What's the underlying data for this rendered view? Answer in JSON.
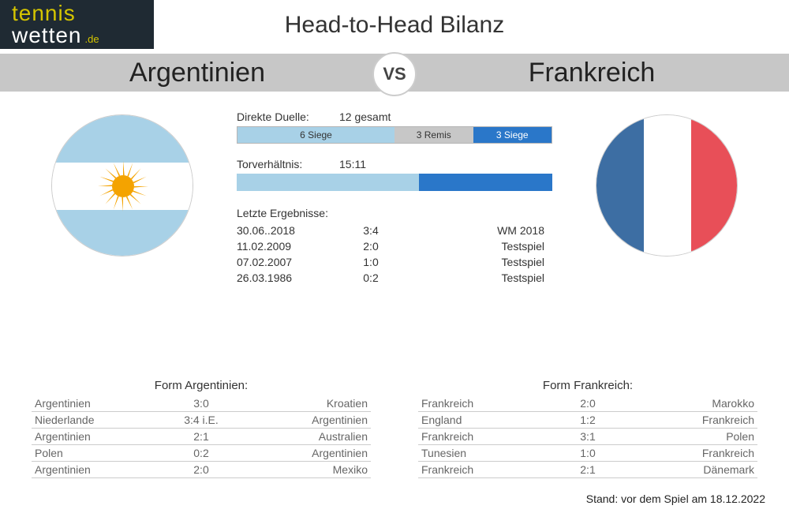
{
  "logo": {
    "line1": "tennis",
    "line2a": "wetten",
    "line2b": ".de"
  },
  "title": "Head-to-Head Bilanz",
  "teamA": "Argentinien",
  "teamB": "Frankreich",
  "vs": "VS",
  "colors": {
    "arg_light": "#a8d1e7",
    "arg_sun": "#f4a300",
    "fra_blue": "#3d6ea3",
    "fra_white": "#ffffff",
    "fra_red": "#e84f58",
    "bar_a": "#a8d1e7",
    "bar_draw": "#c7c7c7",
    "bar_b": "#2a77c9",
    "goals_a": "#a8d1e7",
    "goals_b": "#2a77c9"
  },
  "h2h": {
    "label": "Direkte Duelle:",
    "total_text": "12 gesamt",
    "a_wins": 6,
    "draws": 3,
    "b_wins": 3,
    "total": 12,
    "a_text": "6 Siege",
    "d_text": "3 Remis",
    "b_text": "3 Siege"
  },
  "goals": {
    "label": "Torverhältnis:",
    "text": "15:11",
    "a": 15,
    "b": 11
  },
  "recent": {
    "label": "Letzte Ergebnisse:",
    "rows": [
      {
        "date": "30.06..2018",
        "score": "3:4",
        "comp": "WM 2018"
      },
      {
        "date": "11.02.2009",
        "score": "2:0",
        "comp": "Testspiel"
      },
      {
        "date": "07.02.2007",
        "score": "1:0",
        "comp": "Testspiel"
      },
      {
        "date": "26.03.1986",
        "score": "0:2",
        "comp": "Testspiel"
      }
    ]
  },
  "formA": {
    "title": "Form Argentinien:",
    "rows": [
      {
        "h": "Argentinien",
        "s": "3:0",
        "a": "Kroatien"
      },
      {
        "h": "Niederlande",
        "s": "3:4 i.E.",
        "a": "Argentinien"
      },
      {
        "h": "Argentinien",
        "s": "2:1",
        "a": "Australien"
      },
      {
        "h": "Polen",
        "s": "0:2",
        "a": "Argentinien"
      },
      {
        "h": "Argentinien",
        "s": "2:0",
        "a": "Mexiko"
      }
    ]
  },
  "formB": {
    "title": "Form Frankreich:",
    "rows": [
      {
        "h": "Frankreich",
        "s": "2:0",
        "a": "Marokko"
      },
      {
        "h": "England",
        "s": "1:2",
        "a": "Frankreich"
      },
      {
        "h": "Frankreich",
        "s": "3:1",
        "a": "Polen"
      },
      {
        "h": "Tunesien",
        "s": "1:0",
        "a": "Frankreich"
      },
      {
        "h": "Frankreich",
        "s": "2:1",
        "a": "Dänemark"
      }
    ]
  },
  "footer": "Stand: vor dem Spiel am 18.12.2022"
}
